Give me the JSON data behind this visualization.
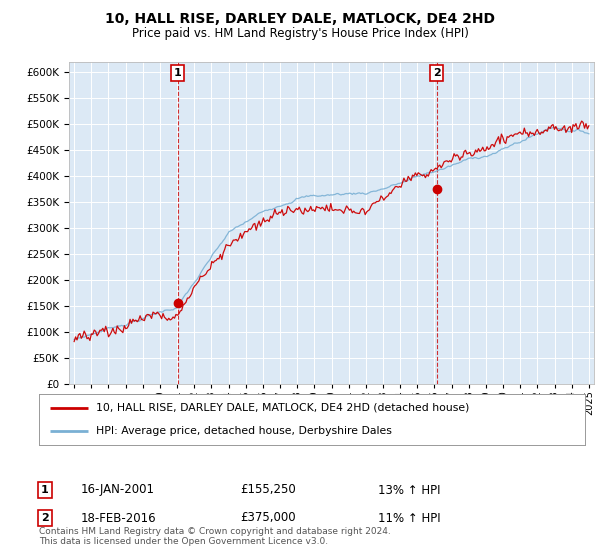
{
  "title1": "10, HALL RISE, DARLEY DALE, MATLOCK, DE4 2HD",
  "title2": "Price paid vs. HM Land Registry's House Price Index (HPI)",
  "bg_color": "#dce9f5",
  "red_color": "#cc0000",
  "blue_color": "#7ab0d4",
  "sale1_year": 2001.04,
  "sale1_price": 155250,
  "sale2_year": 2016.12,
  "sale2_price": 375000,
  "legend_line1": "10, HALL RISE, DARLEY DALE, MATLOCK, DE4 2HD (detached house)",
  "legend_line2": "HPI: Average price, detached house, Derbyshire Dales",
  "annotation1_date": "16-JAN-2001",
  "annotation1_price": "£155,250",
  "annotation1_hpi": "13% ↑ HPI",
  "annotation2_date": "18-FEB-2016",
  "annotation2_price": "£375,000",
  "annotation2_hpi": "11% ↑ HPI",
  "footer": "Contains HM Land Registry data © Crown copyright and database right 2024.\nThis data is licensed under the Open Government Licence v3.0.",
  "ylim_min": 0,
  "ylim_max": 620000,
  "xlim_min": 1994.7,
  "xlim_max": 2025.3
}
